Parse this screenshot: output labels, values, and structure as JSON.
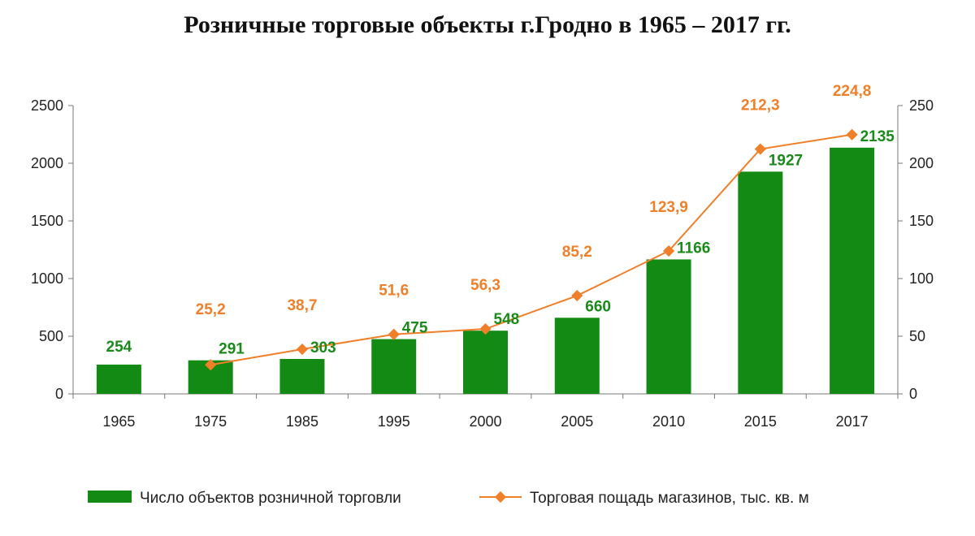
{
  "chart_data": {
    "type": "bar",
    "title": "Розничные торговые объекты г.Гродно в 1965 – 2017 гг.",
    "categories": [
      "1965",
      "1975",
      "1985",
      "1995",
      "2000",
      "2005",
      "2010",
      "2015",
      "2017"
    ],
    "series": [
      {
        "name": "Число объектов розничной торговли",
        "type": "bar",
        "axis": "left",
        "color": "#138a13",
        "values": [
          254,
          291,
          303,
          475,
          548,
          660,
          1166,
          1927,
          2135
        ],
        "labels": [
          "254",
          "291",
          "303",
          "475",
          "548",
          "660",
          "1166",
          "1927",
          "2135"
        ]
      },
      {
        "name": "Торговая пощадь магазинов, тыс. кв. м",
        "type": "line",
        "axis": "right",
        "color": "#f07f2a",
        "values": [
          null,
          25.2,
          38.7,
          51.6,
          56.3,
          85.2,
          123.9,
          212.3,
          224.8
        ],
        "labels": [
          "",
          "25,2",
          "38,7",
          "51,6",
          "56,3",
          "85,2",
          "123,9",
          "212,3",
          "224,8"
        ]
      }
    ],
    "y_left": {
      "ylim": [
        0,
        2500
      ],
      "ticks": [
        "0",
        "500",
        "1000",
        "1500",
        "2000",
        "2500"
      ]
    },
    "y_right": {
      "ylim": [
        0,
        250
      ],
      "ticks": [
        "0",
        "50",
        "100",
        "150",
        "200",
        "250"
      ]
    },
    "grid": false,
    "legend": "bottom"
  }
}
